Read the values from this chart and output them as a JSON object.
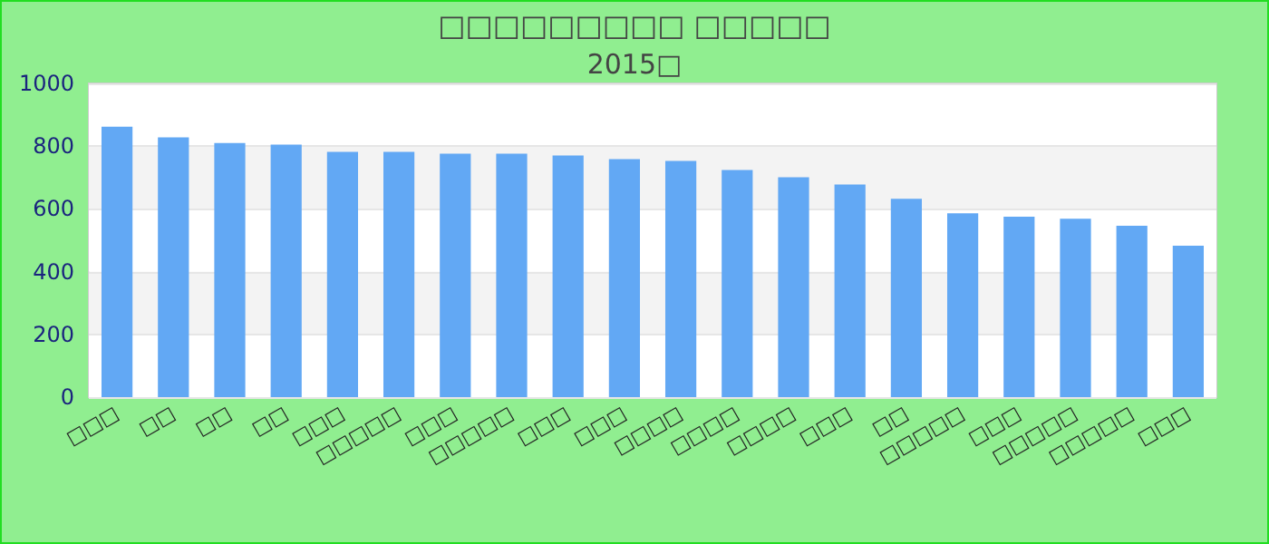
{
  "chart_data": {
    "type": "bar",
    "title": "□□□□□□□□□ □□□□□",
    "subtitle": "2015□",
    "categories": [
      "□□□",
      "□□",
      "□□",
      "□□",
      "□□□",
      "□□□□□",
      "□□□",
      "□□□□□",
      "□□□",
      "□□□",
      "□□□□",
      "□□□□",
      "□□□□",
      "□□□",
      "□□",
      "□□□□□",
      "□□□",
      "□□□□□",
      "□□□□□",
      "□□□"
    ],
    "values": [
      862,
      828,
      810,
      805,
      782,
      782,
      776,
      776,
      770,
      759,
      753,
      724,
      701,
      678,
      632,
      586,
      575,
      569,
      546,
      483
    ],
    "color": "#62a8f4",
    "ylim": [
      0,
      1000
    ],
    "yticks": [
      0,
      200,
      400,
      600,
      800,
      1000
    ],
    "grid": "y"
  }
}
